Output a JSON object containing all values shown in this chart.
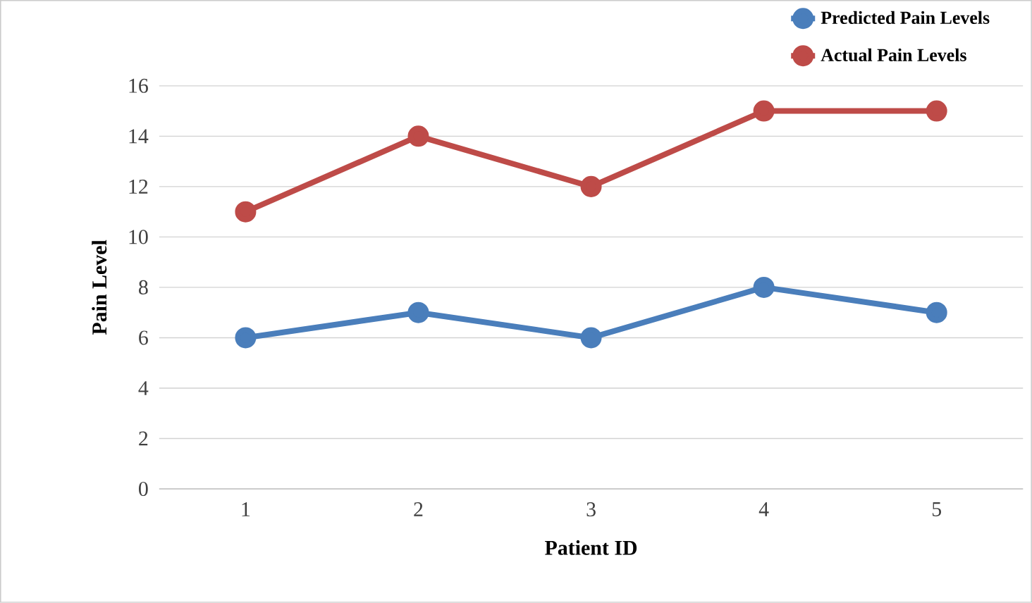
{
  "chart_data": {
    "type": "line",
    "xlabel": "Patient ID",
    "ylabel": "Pain Level",
    "categories": [
      "1",
      "2",
      "3",
      "4",
      "5"
    ],
    "series": [
      {
        "name": "Predicted Pain Levels",
        "color": "#4a7ebb",
        "values": [
          6,
          7,
          6,
          8,
          7
        ]
      },
      {
        "name": "Actual Pain Levels",
        "color": "#be4b48",
        "values": [
          11,
          14,
          12,
          15,
          15
        ]
      }
    ],
    "ylim": [
      0,
      16
    ],
    "yticks": [
      0,
      2,
      4,
      6,
      8,
      10,
      12,
      14,
      16
    ],
    "grid": "y",
    "legend": "top right",
    "marker": "circle",
    "line_style": "solid"
  }
}
